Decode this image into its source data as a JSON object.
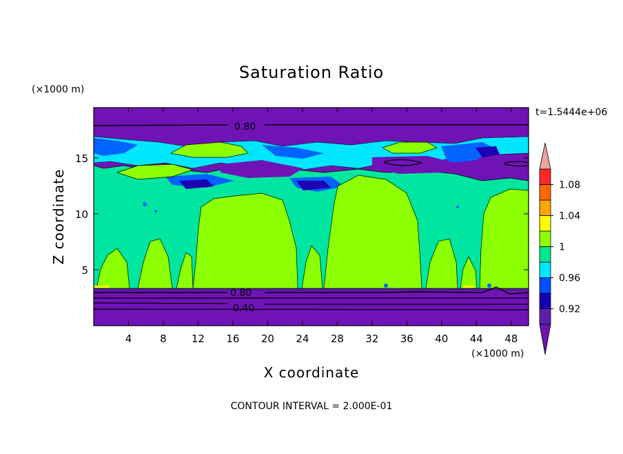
{
  "chart_data": {
    "type": "heatmap",
    "subtype": "filled-contour",
    "title": "Saturation Ratio",
    "xlabel": "X coordinate",
    "ylabel": "Z coordinate",
    "x_unit": "(×1000 m)",
    "y_unit": "(×1000 m)",
    "xlim": [
      0,
      50
    ],
    "ylim": [
      0,
      19.5
    ],
    "x_ticks": [
      4,
      8,
      12,
      16,
      20,
      24,
      28,
      32,
      36,
      40,
      44,
      48
    ],
    "y_ticks": [
      5,
      10,
      15
    ],
    "time_label": "t=1.5444e+06",
    "footer": "CONTOUR INTERVAL = 2.000E-01",
    "line_contours": [
      {
        "label": "0.80",
        "z": 18.2
      },
      {
        "label": "0.80",
        "z": 3.0
      },
      {
        "label": "0.40",
        "z": 1.7
      }
    ],
    "colorbar": {
      "levels": [
        0.9,
        0.92,
        0.94,
        0.96,
        0.98,
        1.0,
        1.02,
        1.04,
        1.06,
        1.08,
        1.1
      ],
      "labels": [
        "0.92",
        "0.96",
        "1",
        "1.04",
        "1.08"
      ],
      "colors": [
        "#5c20a8",
        "#1400b4",
        "#0050ff",
        "#00e6ff",
        "#00e690",
        "#8cff00",
        "#ffff00",
        "#ffa500",
        "#ff6a00",
        "#ff2828"
      ],
      "under_color": "#6a14b4",
      "over_color": "#f0a0a0"
    },
    "colors": {
      "background_low": "#6f13b7",
      "cloud_base": "#00e6a0",
      "cloud": "#8cff00",
      "cyan": "#00e6ff",
      "blue": "#0064ff",
      "darkblue": "#1e00b4"
    }
  }
}
